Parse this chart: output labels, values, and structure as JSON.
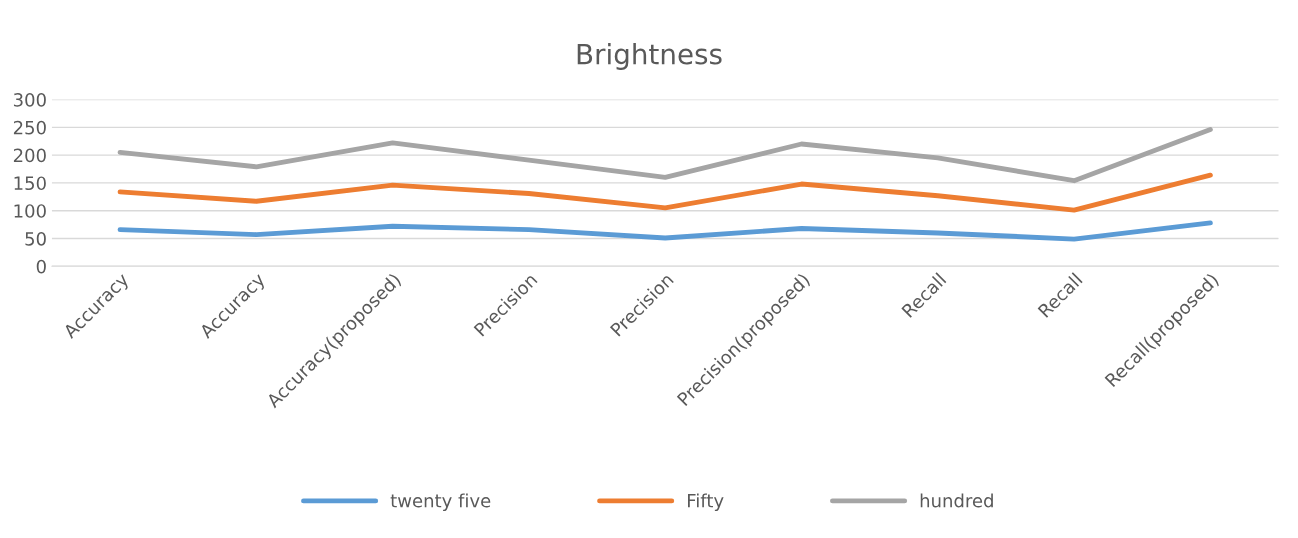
{
  "chart_data": {
    "type": "line",
    "title": "Brightness",
    "categories": [
      "Accuracy",
      "Accuracy",
      "Accuracy(proposed)",
      "Precision",
      "Precision",
      "Precision(proposed)",
      "Recall",
      "Recall",
      "Recall(proposed)"
    ],
    "series": [
      {
        "name": "twenty five",
        "color": "#5b9bd5",
        "values": [
          66,
          57,
          72,
          66,
          51,
          68,
          60,
          49,
          78
        ]
      },
      {
        "name": "Fifty",
        "color": "#ed7d31",
        "values": [
          134,
          117,
          146,
          131,
          105,
          148,
          127,
          101,
          164
        ]
      },
      {
        "name": "hundred",
        "color": "#a5a5a5",
        "values": [
          205,
          179,
          222,
          191,
          160,
          220,
          195,
          154,
          246
        ]
      }
    ],
    "ylim": [
      0,
      300
    ],
    "yticks": [
      0,
      50,
      100,
      150,
      200,
      250,
      300
    ],
    "grid": "y",
    "legend": "bottom",
    "marker": "none",
    "line_style": "solid"
  }
}
